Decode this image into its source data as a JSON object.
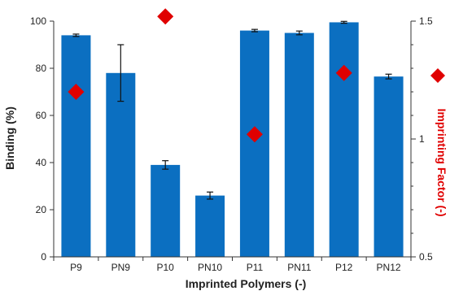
{
  "chart_data": {
    "type": "bar",
    "categories": [
      "P9",
      "PN9",
      "P10",
      "PN10",
      "P11",
      "PN11",
      "P12",
      "PN12"
    ],
    "xlabel": "Imprinted Polymers (-)",
    "ylabel": "Binding (%)",
    "y2label": "Imprinting Factor (-)",
    "ylim": [
      0,
      100
    ],
    "y2lim": [
      0.5,
      1.5
    ],
    "yticks": [
      "0",
      "20",
      "40",
      "60",
      "80",
      "100"
    ],
    "y2ticks": [
      "0.5",
      "1",
      "1.5"
    ],
    "grid": false,
    "series": [
      {
        "type": "bar",
        "axis": "left",
        "values": [
          94.0,
          78.0,
          39.0,
          26.0,
          96.0,
          95.0,
          99.5,
          76.5
        ],
        "errors": [
          0.5,
          12.0,
          1.8,
          1.5,
          0.5,
          0.8,
          0.4,
          1.0
        ],
        "color": "#0b6fc1"
      },
      {
        "type": "scatter",
        "axis": "right",
        "marker": "diamond",
        "points": [
          {
            "category": "P9",
            "value": 1.2
          },
          {
            "category": "P10",
            "value": 1.52
          },
          {
            "category": "P11",
            "value": 1.02
          },
          {
            "category": "P12",
            "value": 1.28
          }
        ],
        "color": "#e00000"
      }
    ],
    "legend_marker": {
      "marker": "diamond",
      "color": "#e00000"
    }
  }
}
